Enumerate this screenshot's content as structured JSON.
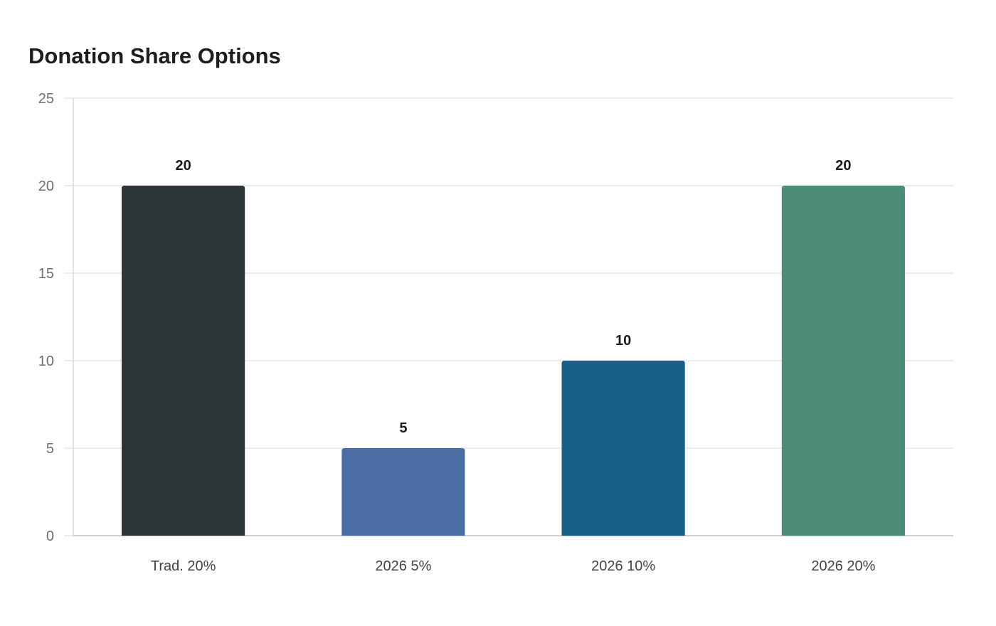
{
  "chart_data": {
    "type": "bar",
    "title": "Donation Share Options",
    "categories": [
      "Trad. 20%",
      "2026 5%",
      "2026 10%",
      "2026 20%"
    ],
    "values": [
      20,
      5,
      10,
      20
    ],
    "bar_colors": [
      "#2d3538",
      "#4a6ea3",
      "#186088",
      "#4e8c7a"
    ],
    "ylim": [
      0,
      25
    ],
    "yticks": [
      0,
      5,
      10,
      15,
      20,
      25
    ],
    "grid": true,
    "xlabel": "",
    "ylabel": ""
  }
}
